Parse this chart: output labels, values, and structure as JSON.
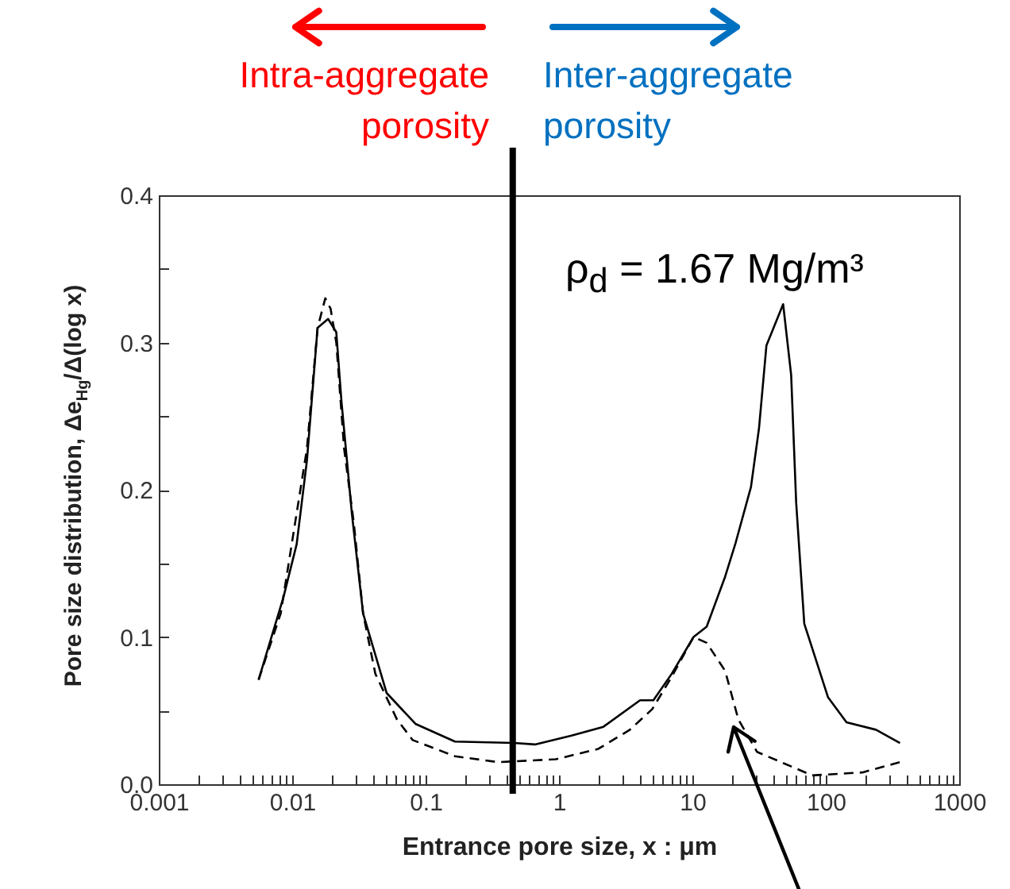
{
  "chart_data": {
    "type": "line",
    "xlabel": "Entrance pore size, x : μm",
    "ylabel": "Pore size distribution, Δe$_{Hg}$/Δ(log x)",
    "annotations": [
      "Intra-aggregate porosity",
      "Inter-aggregate porosity",
      "ρ$_{d}$ = 1.67 Mg/m³"
    ],
    "log": "x",
    "xlim": [
      0.001,
      1000
    ],
    "ylim": [
      0,
      0.4
    ],
    "xticks": [
      0.001,
      {
        "value": 0.002,
        "label": null
      },
      {
        "value": 0.003,
        "label": null
      },
      {
        "value": 0.004,
        "label": null
      },
      {
        "value": 0.005,
        "label": null
      },
      {
        "value": 0.006,
        "label": null
      },
      {
        "value": 0.007,
        "label": null
      },
      {
        "value": 0.008,
        "label": null
      },
      {
        "value": 0.009,
        "label": null
      },
      0.01,
      {
        "value": 0.02,
        "label": null
      },
      {
        "value": 0.03,
        "label": null
      },
      {
        "value": 0.04,
        "label": null
      },
      {
        "value": 0.05,
        "label": null
      },
      {
        "value": 0.06,
        "label": null
      },
      {
        "value": 0.07,
        "label": null
      },
      {
        "value": 0.08,
        "label": null
      },
      {
        "value": 0.09,
        "label": null
      },
      0.1,
      {
        "value": 0.2,
        "label": null
      },
      {
        "value": 0.3,
        "label": null
      },
      {
        "value": 0.4,
        "label": null
      },
      {
        "value": 0.5,
        "label": null
      },
      {
        "value": 0.6,
        "label": null
      },
      {
        "value": 0.7,
        "label": null
      },
      {
        "value": 0.8,
        "label": null
      },
      {
        "value": 0.9,
        "label": null
      },
      1,
      {
        "value": 2,
        "label": null
      },
      {
        "value": 3,
        "label": null
      },
      {
        "value": 4,
        "label": null
      },
      {
        "value": 5,
        "label": null
      },
      {
        "value": 6,
        "label": null
      },
      {
        "value": 7,
        "label": null
      },
      {
        "value": 8,
        "label": null
      },
      {
        "value": 9,
        "label": null
      },
      10,
      {
        "value": 20,
        "label": null
      },
      {
        "value": 30,
        "label": null
      },
      {
        "value": 40,
        "label": null
      },
      {
        "value": 50,
        "label": null
      },
      {
        "value": 60,
        "label": null
      },
      {
        "value": 70,
        "label": null
      },
      {
        "value": 80,
        "label": null
      },
      {
        "value": 90,
        "label": null
      },
      100,
      {
        "value": 200,
        "label": null
      },
      {
        "value": 300,
        "label": null
      },
      {
        "value": 400,
        "label": null
      },
      {
        "value": 500,
        "label": null
      },
      {
        "value": 600,
        "label": null
      },
      {
        "value": 700,
        "label": null
      },
      {
        "value": 800,
        "label": null
      },
      {
        "value": 900,
        "label": null
      },
      1000
    ],
    "yticks": [
      {
        "value": 0,
        "label": "0.0"
      },
      {
        "value": 0.05,
        "label": null
      },
      0.1,
      {
        "value": 0.15,
        "label": null
      },
      0.2,
      {
        "value": 0.25,
        "label": null
      },
      0.3,
      {
        "value": 0.35,
        "label": null
      },
      0.4
    ],
    "ref_lines": [
      {
        "axis": "x",
        "value": 0.45,
        "color": "#000000"
      }
    ],
    "series": [
      {
        "color": "#000000",
        "line_style": "solid",
        "x": [
          0.0056,
          0.0086,
          0.0108,
          0.0129,
          0.0155,
          0.0186,
          0.0214,
          0.0234,
          0.028,
          0.034,
          0.051,
          0.084,
          0.166,
          0.46,
          0.66,
          1.24,
          2.15,
          4.05,
          5.1,
          7.0,
          10.2,
          12.8,
          17.6,
          21.1,
          27.5,
          31.6,
          35.9,
          47.9,
          55,
          60,
          69,
          104,
          143,
          238,
          360
        ],
        "values": [
          0.071,
          0.127,
          0.163,
          0.22,
          0.31,
          0.316,
          0.307,
          0.26,
          0.184,
          0.116,
          0.062,
          0.041,
          0.029,
          0.028,
          0.027,
          0.033,
          0.039,
          0.057,
          0.057,
          0.075,
          0.1,
          0.107,
          0.141,
          0.164,
          0.202,
          0.242,
          0.298,
          0.326,
          0.278,
          0.191,
          0.109,
          0.059,
          0.042,
          0.037,
          0.028
        ]
      },
      {
        "color": "#000000",
        "line_style": "dashed",
        "x": [
          0.0056,
          0.0082,
          0.0102,
          0.0129,
          0.0155,
          0.0177,
          0.0194,
          0.0214,
          0.0245,
          0.029,
          0.034,
          0.042,
          0.061,
          0.08,
          0.166,
          0.35,
          0.95,
          1.97,
          3.4,
          5.0,
          7.0,
          10.2,
          12.8,
          17.6,
          22.1,
          30.5,
          79,
          188,
          360
        ],
        "values": [
          0.071,
          0.116,
          0.17,
          0.228,
          0.31,
          0.33,
          0.323,
          0.3,
          0.228,
          0.177,
          0.116,
          0.075,
          0.044,
          0.03,
          0.019,
          0.015,
          0.017,
          0.024,
          0.037,
          0.051,
          0.073,
          0.1,
          0.096,
          0.077,
          0.044,
          0.022,
          0.006,
          0.008,
          0.015
        ]
      }
    ]
  }
}
